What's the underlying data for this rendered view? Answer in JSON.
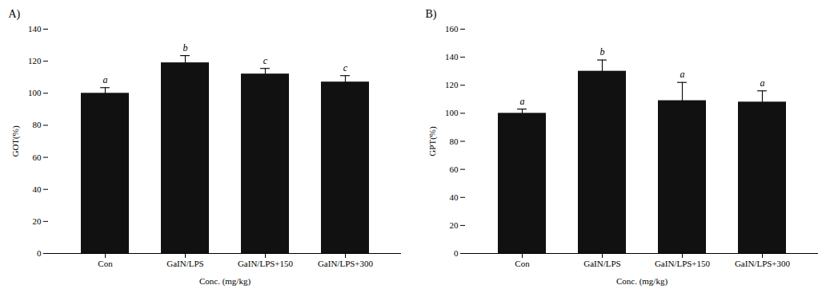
{
  "chart_data": [
    {
      "type": "bar",
      "title": "A)",
      "categories": [
        "Con",
        "GaIN/LPS",
        "GaIN/LPS+150",
        "GaIN/LPS+300"
      ],
      "values": [
        100,
        119,
        112,
        107
      ],
      "errors": [
        3.5,
        4.5,
        3.5,
        4.0
      ],
      "annotations": [
        "a",
        "b",
        "c",
        "c"
      ],
      "color": "#111111",
      "xlabel": "Conc. (mg/kg)",
      "ylabel": "GOT(%)",
      "ylim": [
        0,
        140
      ],
      "yticks": [
        0,
        20,
        40,
        60,
        80,
        100,
        120,
        140
      ],
      "grid": false
    },
    {
      "type": "bar",
      "title": "B)",
      "categories": [
        "Con",
        "GaIN/LPS",
        "GaIN/LPS+150",
        "GaIN/LPS+300"
      ],
      "values": [
        100,
        130,
        109,
        108
      ],
      "errors": [
        3.0,
        8.0,
        13.0,
        8.0
      ],
      "annotations": [
        "a",
        "b",
        "a",
        "a"
      ],
      "color": "#111111",
      "xlabel": "Conc. (mg/kg)",
      "ylabel": "GPT(%)",
      "ylim": [
        0,
        160
      ],
      "yticks": [
        0,
        20,
        40,
        60,
        80,
        100,
        120,
        140,
        160
      ],
      "grid": false
    }
  ]
}
